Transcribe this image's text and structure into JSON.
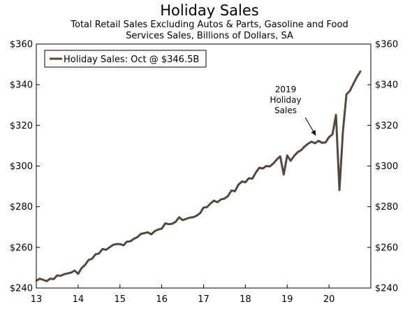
{
  "chart_data": {
    "type": "line",
    "title": "Holiday Sales",
    "subtitle_lines": [
      "Total Retail Sales Excluding Autos & Parts, Gasoline and Food",
      "Services Sales, Billions of Dollars, SA"
    ],
    "xlabel": "",
    "ylabel": "",
    "x_tick_labels": [
      "13",
      "14",
      "15",
      "16",
      "17",
      "18",
      "19",
      "20"
    ],
    "x_tick_years": [
      2013,
      2014,
      2015,
      2016,
      2017,
      2018,
      2019,
      2020
    ],
    "xlim": [
      2013.0,
      2021.0
    ],
    "y_tick_labels": [
      "$240",
      "$260",
      "$280",
      "$300",
      "$320",
      "$340",
      "$360"
    ],
    "y_tick_values": [
      240,
      260,
      280,
      300,
      320,
      340,
      360
    ],
    "ylim": [
      240,
      360
    ],
    "legend": "Holiday Sales: Oct @ $346.5B",
    "legend_position": "top-left",
    "annotation": "2019 Holiday Sales",
    "annotation_lines": [
      "2019",
      "Holiday",
      "Sales"
    ],
    "annotation_target": {
      "x": 2019.75,
      "y": 313.0
    },
    "line_color": "#54483d",
    "series": [
      {
        "name": "Holiday Sales",
        "x": [
          2013.0,
          2013.083,
          2013.167,
          2013.25,
          2013.333,
          2013.417,
          2013.5,
          2013.583,
          2013.667,
          2013.75,
          2013.833,
          2013.917,
          2014.0,
          2014.083,
          2014.167,
          2014.25,
          2014.333,
          2014.417,
          2014.5,
          2014.583,
          2014.667,
          2014.75,
          2014.833,
          2014.917,
          2015.0,
          2015.083,
          2015.167,
          2015.25,
          2015.333,
          2015.417,
          2015.5,
          2015.583,
          2015.667,
          2015.75,
          2015.833,
          2015.917,
          2016.0,
          2016.083,
          2016.167,
          2016.25,
          2016.333,
          2016.417,
          2016.5,
          2016.583,
          2016.667,
          2016.75,
          2016.833,
          2016.917,
          2017.0,
          2017.083,
          2017.167,
          2017.25,
          2017.333,
          2017.417,
          2017.5,
          2017.583,
          2017.667,
          2017.75,
          2017.833,
          2017.917,
          2018.0,
          2018.083,
          2018.167,
          2018.25,
          2018.333,
          2018.417,
          2018.5,
          2018.583,
          2018.667,
          2018.75,
          2018.833,
          2018.917,
          2019.0,
          2019.083,
          2019.167,
          2019.25,
          2019.333,
          2019.417,
          2019.5,
          2019.583,
          2019.667,
          2019.75,
          2019.833,
          2019.917,
          2020.0,
          2020.083,
          2020.167,
          2020.25,
          2020.333,
          2020.417,
          2020.5,
          2020.583,
          2020.667,
          2020.75
        ],
        "values": [
          243.6,
          244.6,
          244.0,
          243.4,
          244.6,
          244.4,
          246.2,
          246.0,
          246.8,
          247.2,
          247.6,
          248.6,
          247.0,
          249.8,
          251.4,
          253.8,
          254.4,
          256.6,
          257.0,
          259.2,
          258.8,
          260.0,
          261.2,
          261.6,
          261.6,
          261.0,
          262.8,
          263.0,
          264.2,
          265.0,
          266.6,
          267.0,
          267.4,
          266.4,
          268.0,
          268.8,
          269.2,
          271.8,
          271.4,
          271.6,
          272.6,
          274.8,
          273.4,
          274.0,
          274.6,
          274.8,
          275.6,
          276.8,
          279.6,
          279.8,
          281.6,
          283.0,
          282.2,
          283.6,
          284.0,
          285.2,
          288.0,
          287.6,
          290.8,
          292.4,
          292.0,
          294.0,
          293.8,
          296.8,
          299.2,
          298.8,
          300.0,
          299.8,
          301.2,
          303.2,
          304.8,
          295.8,
          305.2,
          302.6,
          305.0,
          306.8,
          307.8,
          309.6,
          311.0,
          312.0,
          311.2,
          312.4,
          311.4,
          311.6,
          314.2,
          315.6,
          325.2,
          288.2,
          317.0,
          335.2,
          337.0,
          340.4,
          343.8,
          346.5
        ]
      }
    ]
  }
}
